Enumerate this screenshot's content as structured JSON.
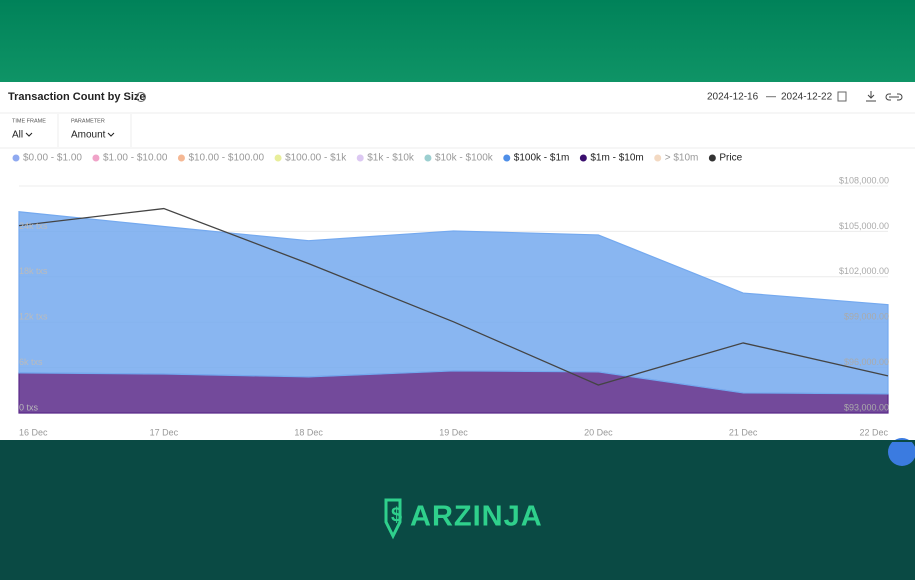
{
  "ui": {
    "title": "Transaction Count by Size",
    "date_from": "2024-12-16",
    "date_sep": "—",
    "date_to": "2024-12-22",
    "filters": [
      {
        "label": "TIME FRAME",
        "value": "All"
      },
      {
        "label": "PARAMETER",
        "value": "Amount"
      }
    ],
    "brand": "ARZINJA"
  },
  "chart_data": {
    "type": "stacked-area",
    "categories": [
      "16 Dec",
      "17 Dec",
      "18 Dec",
      "19 Dec",
      "20 Dec",
      "21 Dec",
      "22 Dec"
    ],
    "legend": [
      {
        "name": "$0.00 - $1.00",
        "color": "#8fa9f0",
        "active": false
      },
      {
        "name": "$1.00 - $10.00",
        "color": "#f0a3c8",
        "active": false
      },
      {
        "name": "$10.00 - $100.00",
        "color": "#f5b894",
        "active": false
      },
      {
        "name": "$100.00 - $1k",
        "color": "#e8ee9a",
        "active": false
      },
      {
        "name": "$1k - $10k",
        "color": "#dcc8f2",
        "active": false
      },
      {
        "name": "$10k - $100k",
        "color": "#9ccfd0",
        "active": false
      },
      {
        "name": "$100k - $1m",
        "color": "#4f8fe8",
        "active": true
      },
      {
        "name": "$1m - $10m",
        "color": "#3a0f6e",
        "active": true
      },
      {
        "name": "> $10m",
        "color": "#f3d9c2",
        "active": false
      },
      {
        "name": "Price",
        "color": "#333333",
        "active": true
      }
    ],
    "series": [
      {
        "name": "$1m - $10m",
        "color": "#5a2a8a",
        "values": [
          5300,
          5150,
          4770,
          5560,
          5430,
          2650,
          2520
        ]
      },
      {
        "name": "$100k - $1m",
        "color": "#74a9ef",
        "values": [
          21300,
          19500,
          18000,
          18500,
          18100,
          13200,
          11800
        ]
      },
      {
        "name": "Price",
        "color": "#444444",
        "axis": "y2",
        "values": [
          105380,
          106510,
          102870,
          99025,
          94850,
          97630,
          95450
        ]
      }
    ],
    "ylim": [
      0,
      30000
    ],
    "yticks": [
      {
        "value": 0,
        "label": "0 txs"
      },
      {
        "value": 6000,
        "label": "6k txs"
      },
      {
        "value": 12000,
        "label": "12k txs"
      },
      {
        "value": 18000,
        "label": "18k txs"
      },
      {
        "value": 24000,
        "label": "24k txs"
      }
    ],
    "y2lim": [
      93000,
      108000
    ],
    "y2ticks": [
      {
        "value": 93000,
        "label": "$93,000.00"
      },
      {
        "value": 96000,
        "label": "$96,000.00"
      },
      {
        "value": 99000,
        "label": "$99,000.00"
      },
      {
        "value": 102000,
        "label": "$102,000.00"
      },
      {
        "value": 105000,
        "label": "$105,000.00"
      },
      {
        "value": 108000,
        "label": "$108,000.00"
      }
    ],
    "grid": true
  }
}
